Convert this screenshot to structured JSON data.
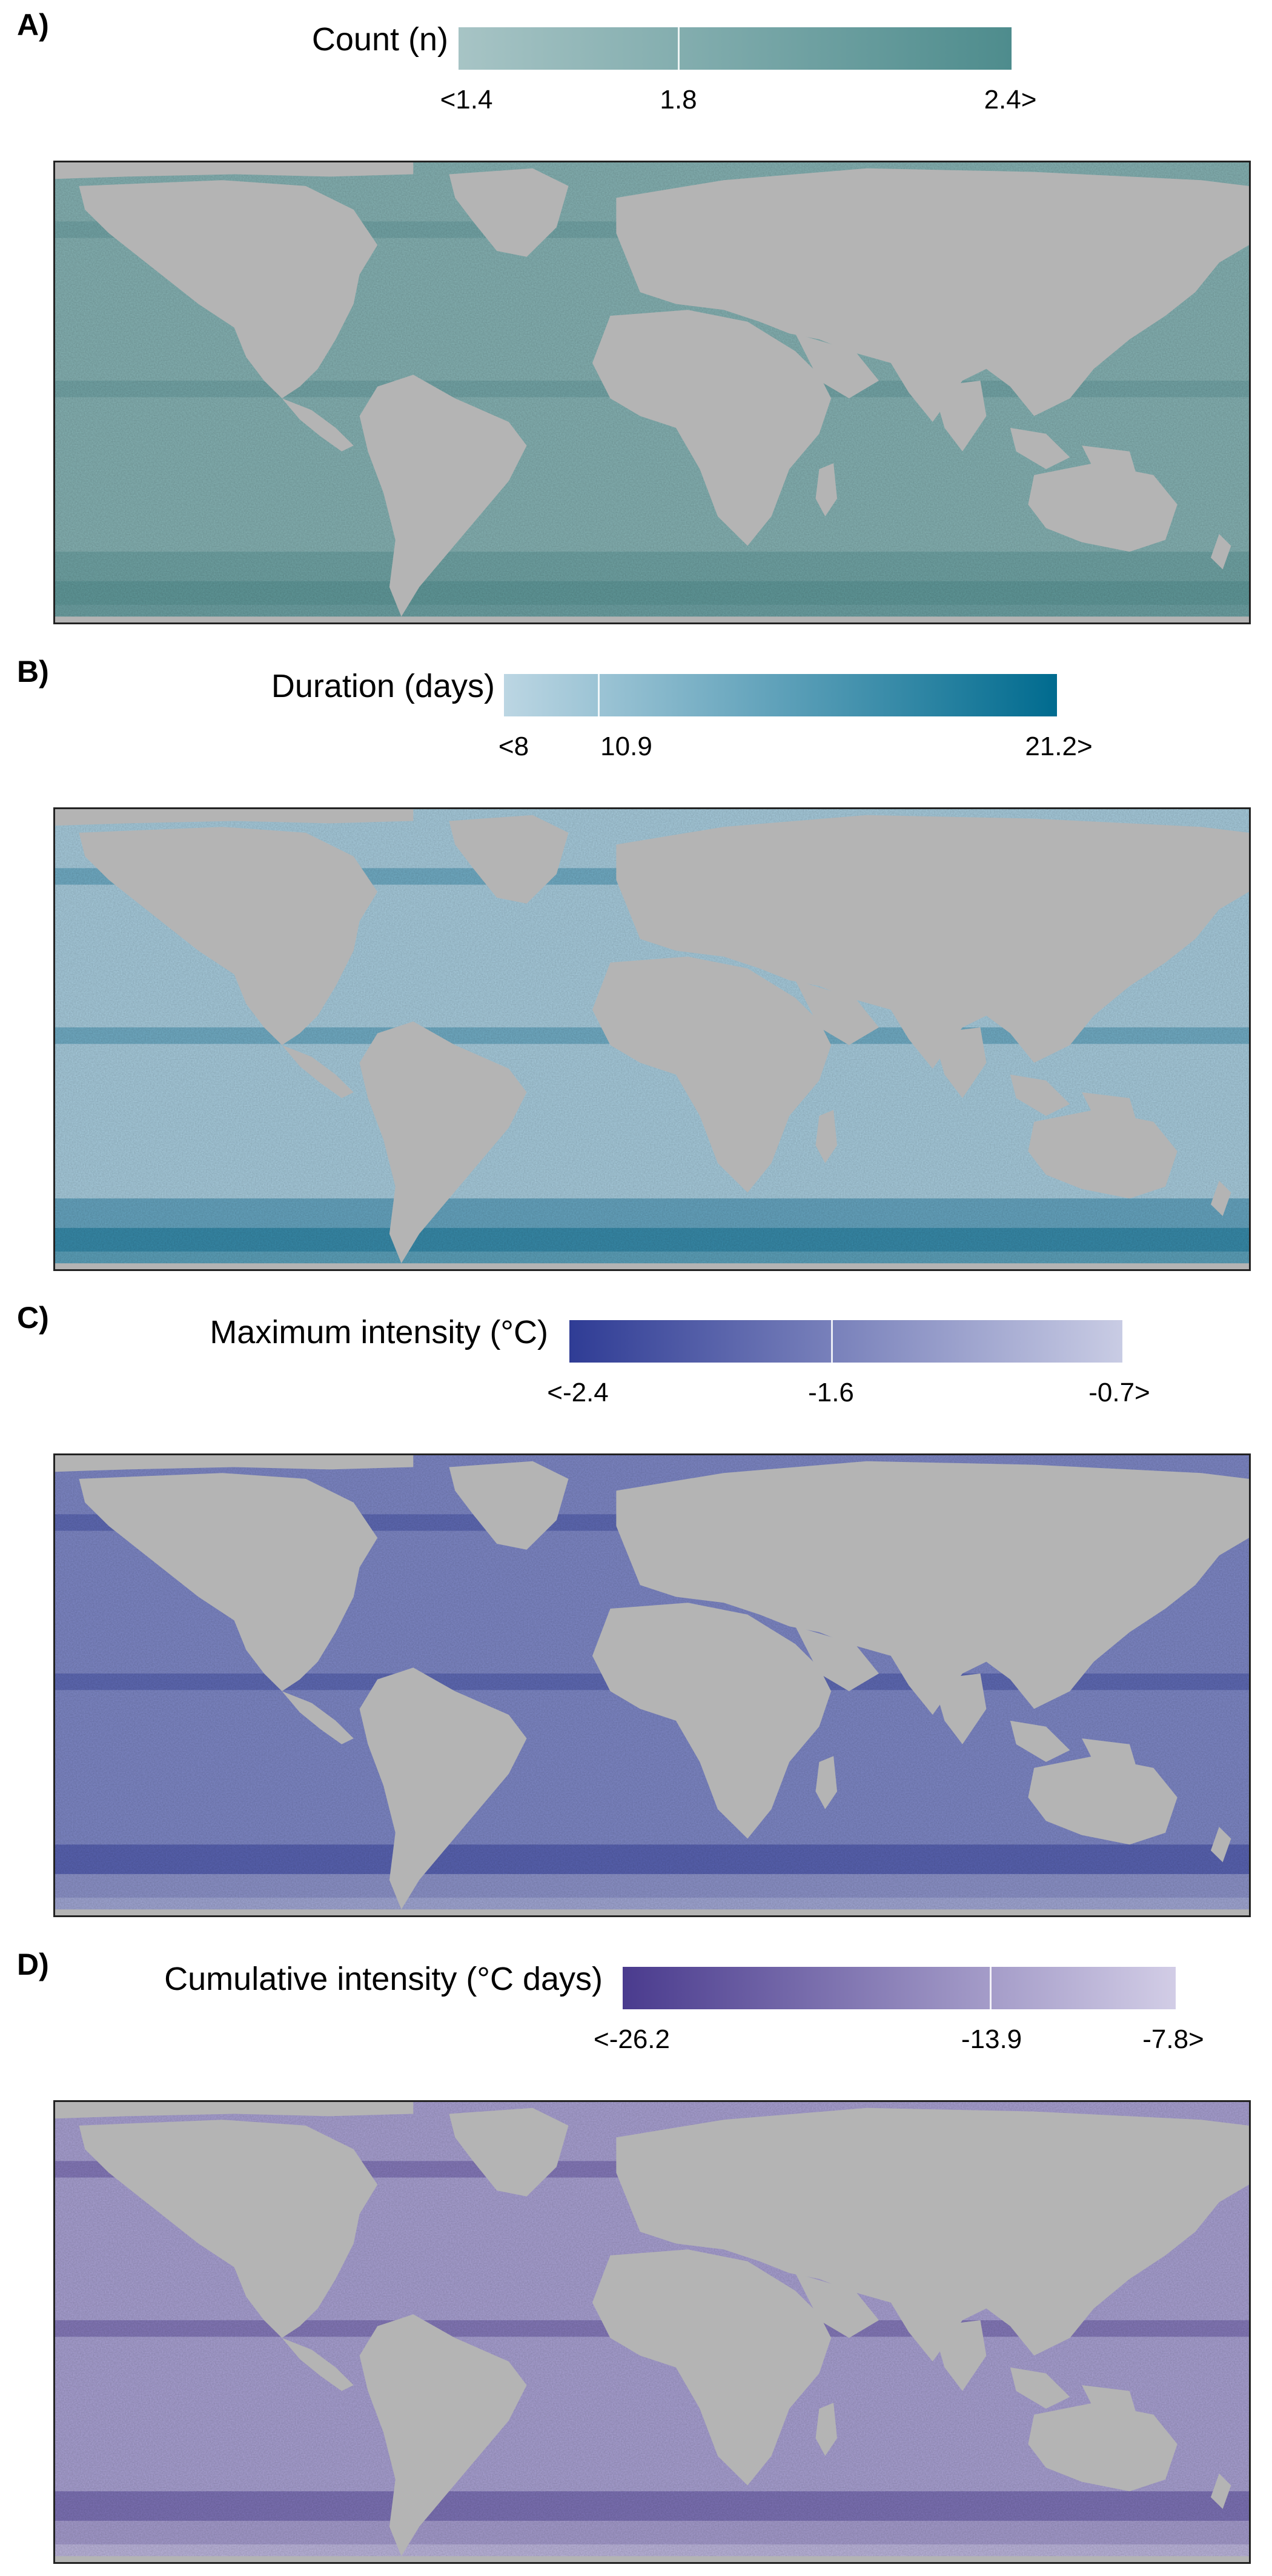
{
  "panels": [
    {
      "label": "A)",
      "title": "Count (n)",
      "ticks": [
        "<1.4",
        "1.8",
        "2.4>"
      ],
      "colors": {
        "low": "#a7c4c5",
        "high": "#4e8c8d",
        "ocean": "#84b0b1",
        "band": "#5f9798"
      }
    },
    {
      "label": "B)",
      "title": "Duration (days)",
      "ticks": [
        "<8",
        "10.9",
        "21.2>"
      ],
      "colors": {
        "low": "#bcd6e3",
        "high": "#006b8f",
        "ocean": "#a6cadb",
        "band": "#2f84a6"
      }
    },
    {
      "label": "C)",
      "title": "Maximum intensity (°C)",
      "ticks": [
        "<-2.4",
        "-1.6",
        "-0.7>"
      ],
      "colors": {
        "low": "#2f3c95",
        "high": "#c9cce4",
        "ocean": "#7d86c4",
        "band": "#3a46a0"
      }
    },
    {
      "label": "D)",
      "title": "Cumulative intensity (°C days)",
      "ticks": [
        "<-26.2",
        "-13.9",
        "-7.8>"
      ],
      "colors": {
        "low": "#4a3b8e",
        "high": "#d2cde6",
        "ocean": "#a79fd0",
        "band": "#5a4a9c"
      }
    }
  ],
  "land_color": "#b4b4b4"
}
